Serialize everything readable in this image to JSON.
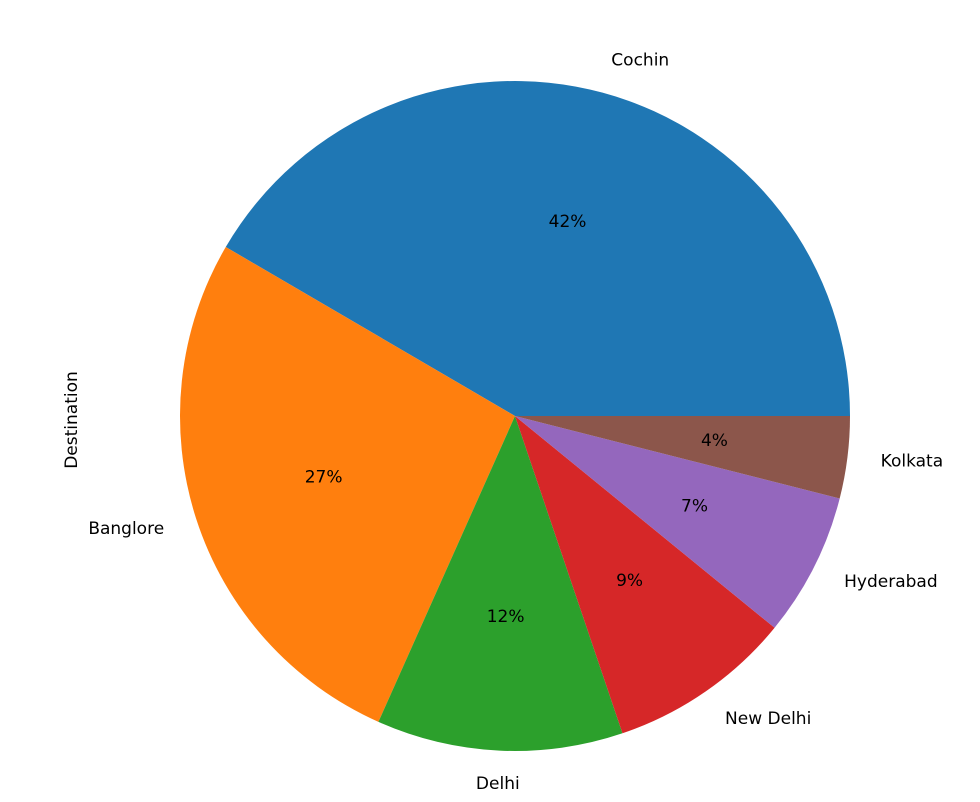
{
  "chart_data": {
    "type": "pie",
    "ylabel": "Destination",
    "categories": [
      "Cochin",
      "Banglore",
      "Delhi",
      "New Delhi",
      "Hyderabad",
      "Kolkata"
    ],
    "values": [
      42,
      27,
      12,
      9,
      7,
      4
    ],
    "value_labels": [
      "42%",
      "27%",
      "12%",
      "9%",
      "7%",
      "4%"
    ],
    "colors": [
      "#1f77b4",
      "#ff7f0e",
      "#2ca02c",
      "#d62728",
      "#9467bd",
      "#8c564b"
    ]
  }
}
